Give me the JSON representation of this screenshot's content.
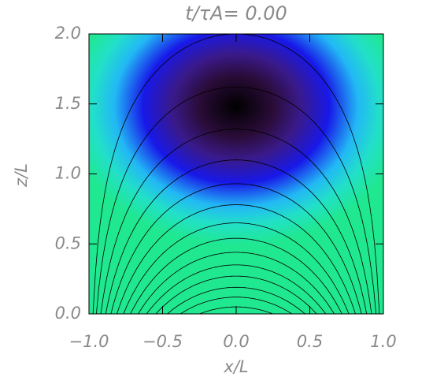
{
  "chart_data": {
    "type": "contour",
    "title": "t/τA= 0.00",
    "x_label": "x/L",
    "y_label": "z/L",
    "xlim": [
      -1,
      1
    ],
    "ylim": [
      0,
      2
    ],
    "xticks": [
      {
        "value": -1,
        "label": "−1.0"
      },
      {
        "value": -0.5,
        "label": "−0.5"
      },
      {
        "value": 0,
        "label": "0.0"
      },
      {
        "value": 0.5,
        "label": "0.5"
      },
      {
        "value": 1,
        "label": "1.0"
      }
    ],
    "yticks": [
      {
        "value": 0,
        "label": "0.0"
      },
      {
        "value": 0.5,
        "label": "0.5"
      },
      {
        "value": 1,
        "label": "1.0"
      },
      {
        "value": 1.5,
        "label": "1.5"
      },
      {
        "value": 2,
        "label": "2.0"
      }
    ]
  }
}
